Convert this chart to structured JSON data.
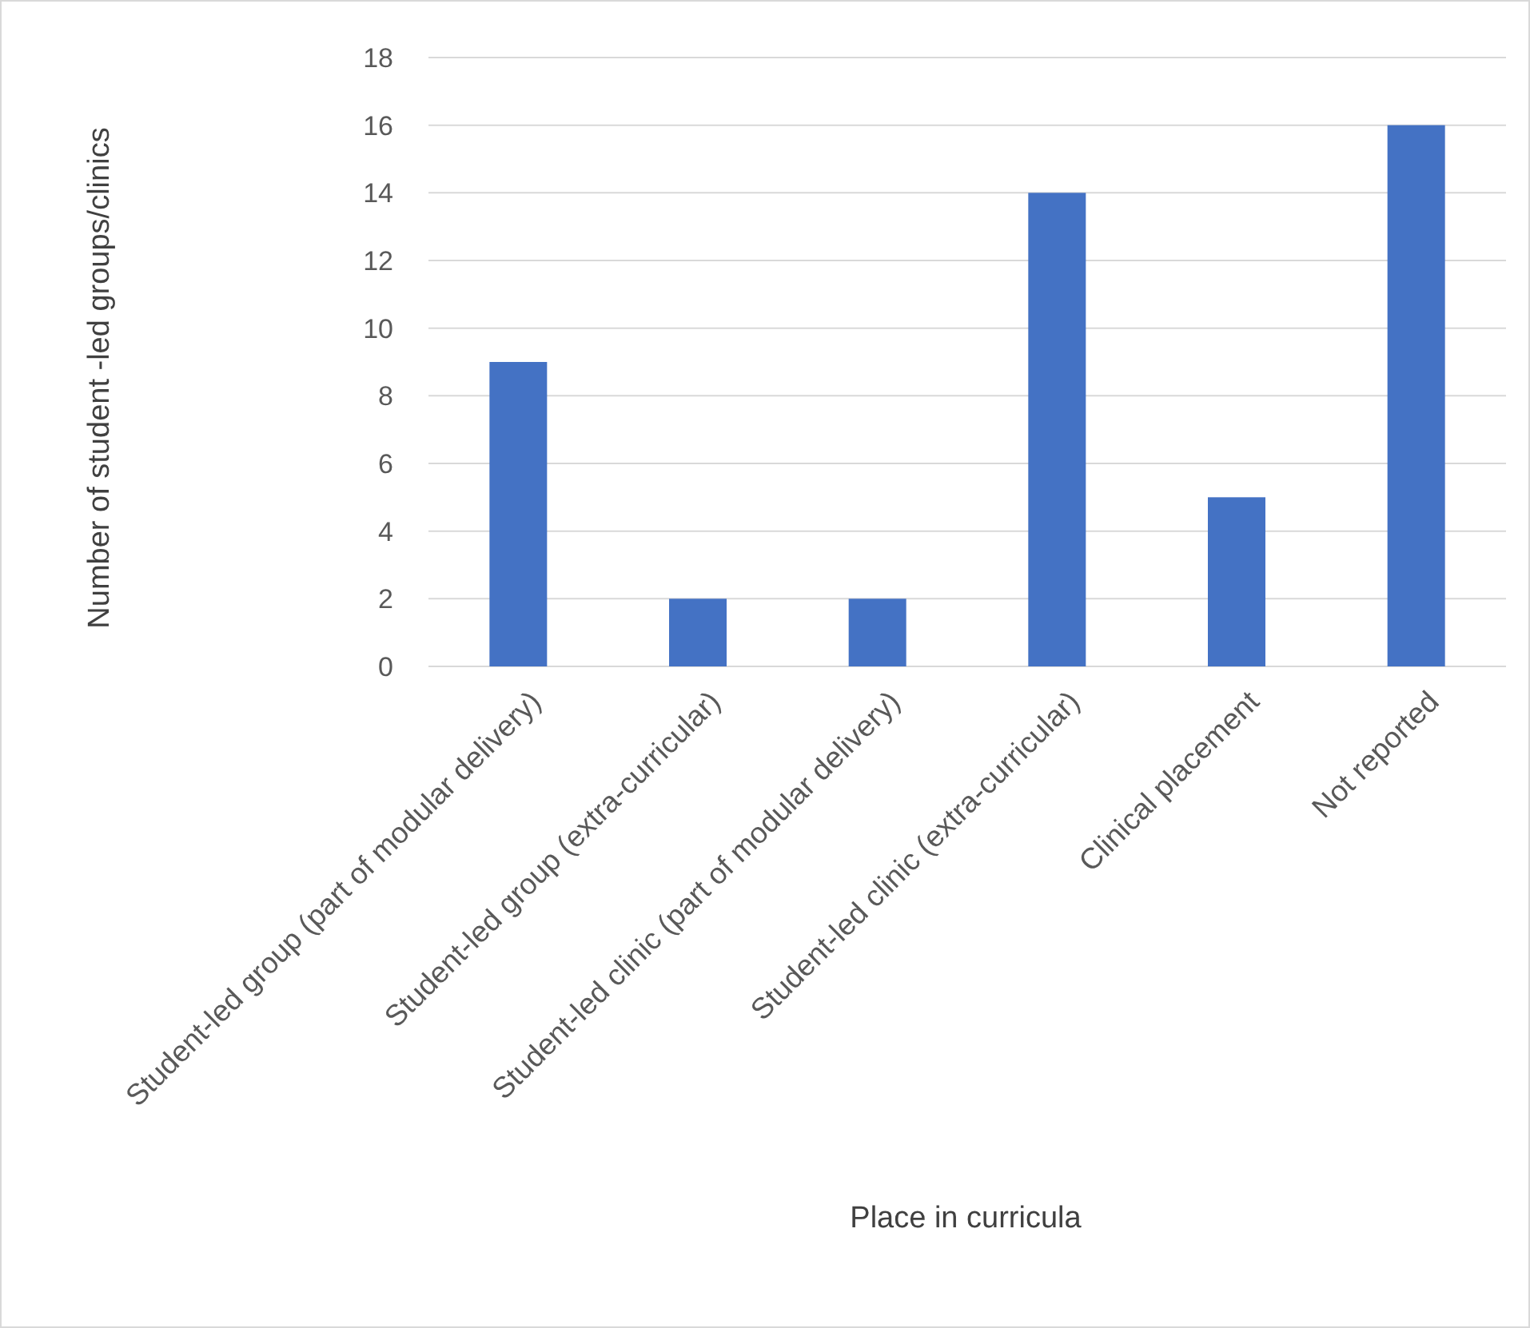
{
  "chart_data": {
    "type": "bar",
    "xlabel": "Place in curricula",
    "ylabel": "Number of student -led groups/clinics",
    "categories": [
      "Student-led group (part of modular delivery)",
      "Student-led group (extra-curricular)",
      "Student-led clinic (part of modular delivery)",
      "Student-led clinic (extra-curricular)",
      "Clinical placement",
      "Not reported"
    ],
    "values": [
      9,
      2,
      2,
      14,
      5,
      16
    ],
    "color": "#4472c4",
    "ylim": [
      0,
      18
    ],
    "yticks": [
      0,
      2,
      4,
      6,
      8,
      10,
      12,
      14,
      16,
      18
    ],
    "grid": "y"
  }
}
